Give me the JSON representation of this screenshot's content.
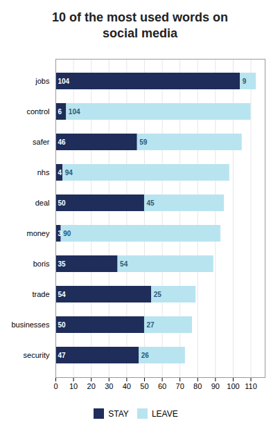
{
  "chart_data": {
    "type": "bar",
    "orientation": "horizontal",
    "stacked": true,
    "title": "10 of the most used words on\nsocial media",
    "categories": [
      "jobs",
      "control",
      "safer",
      "nhs",
      "deal",
      "money",
      "boris",
      "trade",
      "businesses",
      "security"
    ],
    "series": [
      {
        "name": "STAY",
        "color": "#1e2d5a",
        "values": [
          104,
          6,
          46,
          4,
          50,
          3,
          35,
          54,
          50,
          47
        ]
      },
      {
        "name": "LEAVE",
        "color": "#b8e4f0",
        "values": [
          9,
          104,
          59,
          94,
          45,
          90,
          54,
          25,
          27,
          26
        ]
      }
    ],
    "xlim": [
      0,
      118
    ],
    "xticks": [
      0,
      10,
      20,
      30,
      40,
      50,
      60,
      70,
      80,
      90,
      100,
      110
    ],
    "grid": true,
    "legend": "bottom",
    "data_labels": true
  }
}
